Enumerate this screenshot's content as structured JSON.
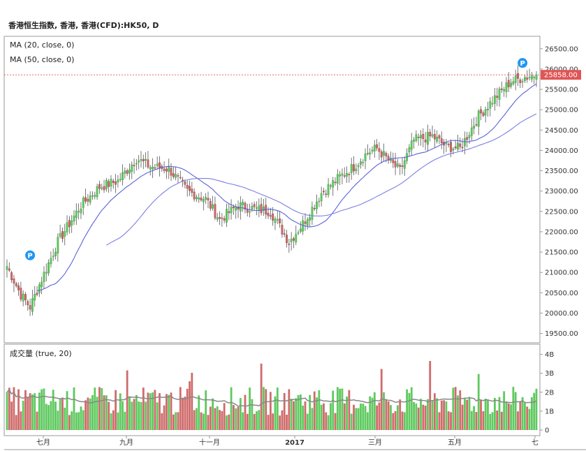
{
  "title": "香港恒生指数, 香港, 香港(CFD):HK50, D",
  "indicators": {
    "ma20": "MA (20, close, 0)",
    "ma50": "MA (50, close, 0)",
    "volume": "成交量 (true, 20)"
  },
  "price_marker": "P",
  "last_price": "25858.00",
  "colors": {
    "up": "#5fc95f",
    "down": "#cf6b6b",
    "ma20": "#5b63d6",
    "ma50": "#7b7fe0",
    "vol_ma": "#888888",
    "last_line": "#e05555",
    "marker": "#2196f3"
  },
  "chart_data": [
    {
      "type": "candlestick",
      "title": "香港恒生指数, 香港, 香港(CFD):HK50, D",
      "ylim": [
        19250,
        26750
      ],
      "y_ticks": [
        "19500.00",
        "20000.00",
        "20500.00",
        "21000.00",
        "21500.00",
        "22000.00",
        "22500.00",
        "23000.00",
        "23500.00",
        "24000.00",
        "24500.00",
        "25000.00",
        "25500.00",
        "26000.00",
        "26500.00"
      ],
      "x_ticks": [
        "七月",
        "九月",
        "十一月",
        "2017",
        "三月",
        "五月",
        "七"
      ],
      "last_value": 25858,
      "close_anchors": [
        [
          0,
          21150
        ],
        [
          6,
          20450
        ],
        [
          10,
          20150
        ],
        [
          14,
          20700
        ],
        [
          22,
          21750
        ],
        [
          32,
          22650
        ],
        [
          40,
          23100
        ],
        [
          48,
          23250
        ],
        [
          56,
          23800
        ],
        [
          62,
          23600
        ],
        [
          70,
          23550
        ],
        [
          78,
          23000
        ],
        [
          86,
          22800
        ],
        [
          92,
          22300
        ],
        [
          100,
          22650
        ],
        [
          108,
          22550
        ],
        [
          114,
          22500
        ],
        [
          122,
          21750
        ],
        [
          128,
          22200
        ],
        [
          136,
          22950
        ],
        [
          144,
          23350
        ],
        [
          150,
          23600
        ],
        [
          156,
          23950
        ],
        [
          160,
          24050
        ],
        [
          166,
          23700
        ],
        [
          170,
          23500
        ],
        [
          176,
          24250
        ],
        [
          184,
          24350
        ],
        [
          190,
          24100
        ],
        [
          196,
          24050
        ],
        [
          204,
          24850
        ],
        [
          212,
          25350
        ],
        [
          218,
          25700
        ],
        [
          224,
          25800
        ],
        [
          229,
          25858
        ]
      ],
      "ma20_range": [
        13,
        229
      ],
      "ma50_range": [
        43,
        229
      ],
      "p_markers": [
        {
          "index": 10,
          "value": 21420
        },
        {
          "index": 223,
          "value": 26150
        }
      ]
    },
    {
      "type": "bar",
      "title": "成交量 (true, 20)",
      "ylim": [
        0,
        4.3
      ],
      "y_ticks": [
        "0",
        "1B",
        "2B",
        "3B",
        "4B"
      ],
      "series": [
        {
          "name": "volume",
          "typical": 1.7
        },
        {
          "name": "vol_ma20"
        }
      ]
    }
  ]
}
